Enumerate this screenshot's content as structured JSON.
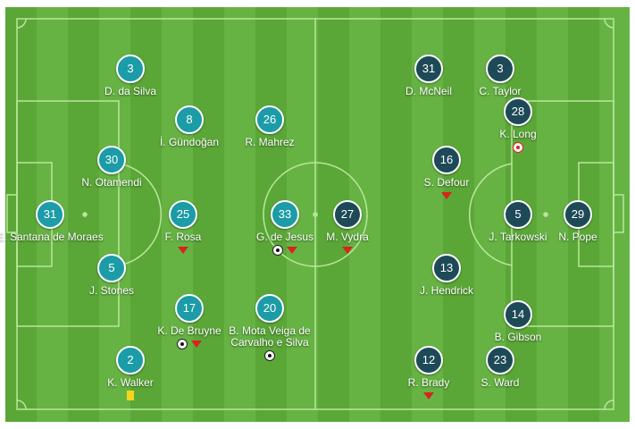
{
  "colors": {
    "home": "#1b9ca6",
    "away": "#1e4a57",
    "pitch": "#5aa737",
    "sub": "#d9231d",
    "yellow_card": "#f5d51a"
  },
  "home": [
    {
      "number": "31",
      "name": "E. Santana de Moraes",
      "events": []
    },
    {
      "number": "5",
      "name": "J. Stones",
      "events": []
    },
    {
      "number": "30",
      "name": "N. Otamendi",
      "events": []
    },
    {
      "number": "3",
      "name": "D. da Silva",
      "events": []
    },
    {
      "number": "2",
      "name": "K. Walker",
      "events": [
        "yellow-card"
      ]
    },
    {
      "number": "8",
      "name": "İ. Gündoğan",
      "events": []
    },
    {
      "number": "26",
      "name": "R. Mahrez",
      "events": []
    },
    {
      "number": "25",
      "name": "F. Rosa",
      "events": [
        "substitution"
      ]
    },
    {
      "number": "33",
      "name": "G. de Jesus",
      "events": [
        "goal",
        "substitution"
      ]
    },
    {
      "number": "17",
      "name": "K. De Bruyne",
      "events": [
        "goal",
        "substitution"
      ]
    },
    {
      "number": "20",
      "name": "B. Mota Veiga de Carvalho e Silva",
      "events": [
        "goal"
      ]
    }
  ],
  "away": [
    {
      "number": "31",
      "name": "D. McNeil",
      "events": []
    },
    {
      "number": "3",
      "name": "C. Taylor",
      "events": []
    },
    {
      "number": "28",
      "name": "K. Long",
      "events": [
        "own-goal"
      ]
    },
    {
      "number": "16",
      "name": "S. Defour",
      "events": [
        "substitution"
      ]
    },
    {
      "number": "27",
      "name": "M. Vydra",
      "events": [
        "substitution"
      ]
    },
    {
      "number": "5",
      "name": "J. Tarkowski",
      "events": []
    },
    {
      "number": "29",
      "name": "N. Pope",
      "events": []
    },
    {
      "number": "13",
      "name": "J. Hendrick",
      "events": []
    },
    {
      "number": "14",
      "name": "B. Gibson",
      "events": []
    },
    {
      "number": "12",
      "name": "R. Brady",
      "events": [
        "substitution"
      ]
    },
    {
      "number": "23",
      "name": "S. Ward",
      "events": []
    }
  ]
}
